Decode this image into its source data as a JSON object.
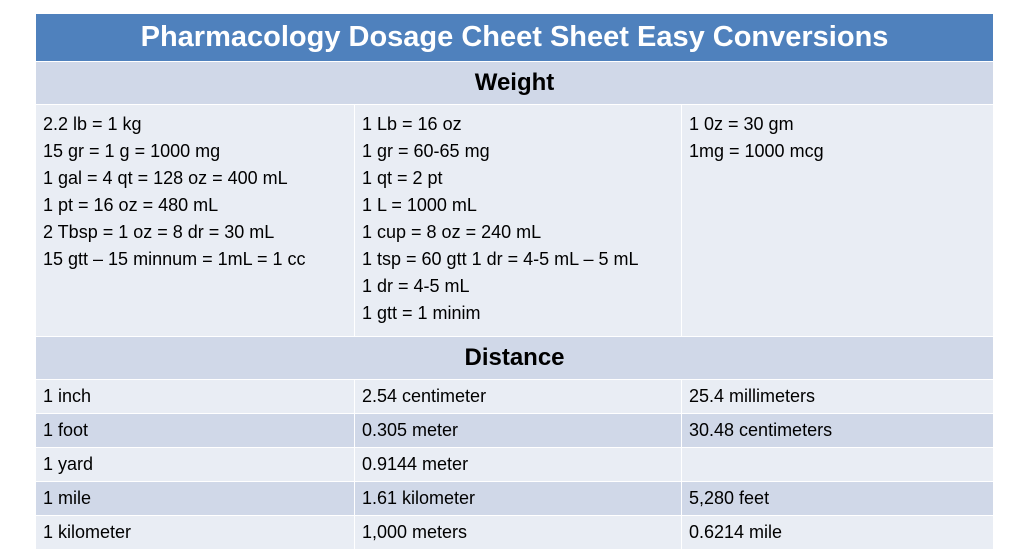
{
  "title": "Pharmacology Dosage Cheet Sheet Easy Conversions",
  "weight": {
    "heading": "Weight",
    "columns": [
      [
        "2.2 lb = 1 kg",
        "15 gr = 1 g = 1000 mg",
        "1 gal = 4 qt = 128 oz = 400 mL",
        "1 pt = 16 oz = 480 mL",
        "2 Tbsp = 1 oz = 8 dr = 30 mL",
        "15 gtt – 15 minnum = 1mL = 1 cc"
      ],
      [
        "1 Lb = 16 oz",
        "1 gr = 60-65 mg",
        "1 qt = 2 pt",
        "1 L = 1000 mL",
        "1 cup = 8 oz = 240 mL",
        "1 tsp = 60 gtt 1 dr = 4-5 mL – 5 mL",
        "1 dr = 4-5 mL",
        "1 gtt = 1 minim"
      ],
      [
        "1 0z = 30 gm",
        "1mg = 1000 mcg"
      ]
    ]
  },
  "distance": {
    "heading": "Distance",
    "rows": [
      [
        "1 inch",
        "2.54 centimeter",
        "25.4 millimeters"
      ],
      [
        "1 foot",
        "0.305 meter",
        "30.48 centimeters"
      ],
      [
        "1 yard",
        "0.9144 meter",
        ""
      ],
      [
        "1 mile",
        "1.61 kilometer",
        "5,280 feet"
      ],
      [
        "1 kilometer",
        "1,000 meters",
        "0.6214 mile"
      ]
    ]
  }
}
